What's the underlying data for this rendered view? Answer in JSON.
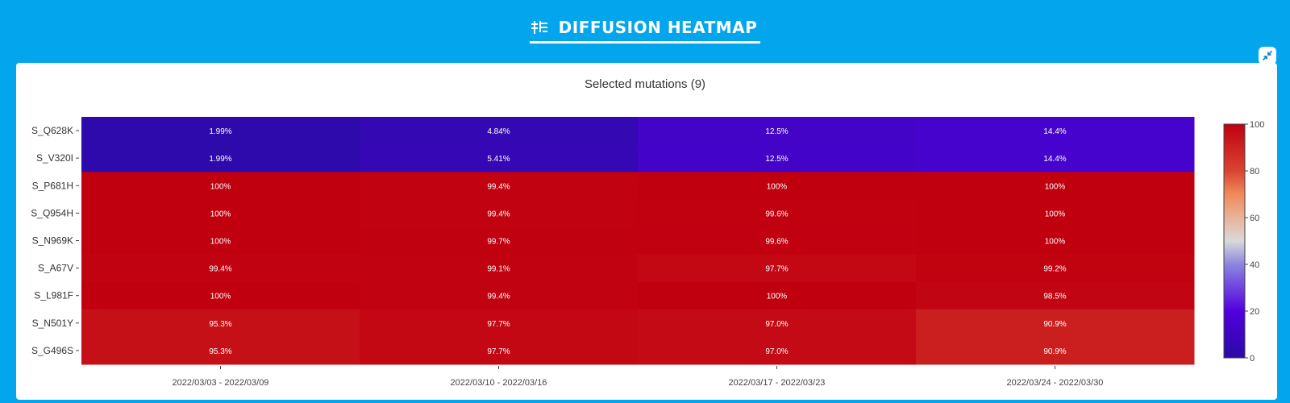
{
  "header": {
    "title": "DIFFUSION HEATMAP",
    "title_icon": "heatmap-icon",
    "collapse_icon": "collapse-icon"
  },
  "colors": {
    "background": "#03a6ec",
    "panel": "#ffffff",
    "text": "#333333"
  },
  "chart_data": {
    "type": "heatmap",
    "title": "Selected mutations (9)",
    "xlabel": "",
    "ylabel": "",
    "x": [
      "2022/03/03 - 2022/03/09",
      "2022/03/10 - 2022/03/16",
      "2022/03/17 - 2022/03/23",
      "2022/03/24 - 2022/03/30"
    ],
    "y": [
      "S_Q628K",
      "S_V320I",
      "S_P681H",
      "S_Q954H",
      "S_N969K",
      "S_A67V",
      "S_L981F",
      "S_N501Y",
      "S_G496S"
    ],
    "values": [
      [
        1.99,
        4.84,
        12.5,
        14.4
      ],
      [
        1.99,
        5.41,
        12.5,
        14.4
      ],
      [
        100,
        99.4,
        100,
        100
      ],
      [
        100,
        99.4,
        99.6,
        100
      ],
      [
        100,
        99.7,
        99.6,
        100
      ],
      [
        99.4,
        99.1,
        97.7,
        99.2
      ],
      [
        100,
        99.4,
        100,
        98.5
      ],
      [
        95.3,
        97.7,
        97.0,
        90.9
      ],
      [
        95.3,
        97.7,
        97.0,
        90.9
      ]
    ],
    "labels": [
      [
        "1.99%",
        "4.84%",
        "12.5%",
        "14.4%"
      ],
      [
        "1.99%",
        "5.41%",
        "12.5%",
        "14.4%"
      ],
      [
        "100%",
        "99.4%",
        "100%",
        "100%"
      ],
      [
        "100%",
        "99.4%",
        "99.6%",
        "100%"
      ],
      [
        "100%",
        "99.7%",
        "99.6%",
        "100%"
      ],
      [
        "99.4%",
        "99.1%",
        "97.7%",
        "99.2%"
      ],
      [
        "100%",
        "99.4%",
        "100%",
        "98.5%"
      ],
      [
        "95.3%",
        "97.7%",
        "97.0%",
        "90.9%"
      ],
      [
        "95.3%",
        "97.7%",
        "97.0%",
        "90.9%"
      ]
    ],
    "colorscale": {
      "range": [
        0,
        100
      ],
      "ticks": [
        0,
        20,
        40,
        60,
        80,
        100
      ],
      "stops": [
        [
          0,
          "#2a0aa6"
        ],
        [
          0.2,
          "#5200dd"
        ],
        [
          0.4,
          "#8c85e0"
        ],
        [
          0.5,
          "#d9d9d9"
        ],
        [
          0.6,
          "#e8b39a"
        ],
        [
          0.7,
          "#ef8a5a"
        ],
        [
          0.8,
          "#d94432"
        ],
        [
          1.0,
          "#c0000f"
        ]
      ]
    },
    "grid": false,
    "legend": "right colorbar"
  }
}
